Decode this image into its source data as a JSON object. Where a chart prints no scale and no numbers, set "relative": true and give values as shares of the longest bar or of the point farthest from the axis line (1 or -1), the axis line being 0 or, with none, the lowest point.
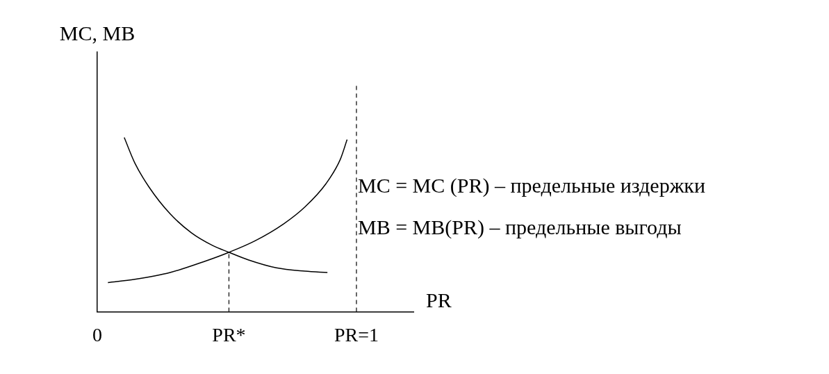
{
  "chart_data": {
    "type": "line",
    "relative": true,
    "xlabel": "PR",
    "ylabel": "MC, MB",
    "xlim": [
      0,
      1.22
    ],
    "xticks": [
      0,
      {
        "value": 0.508,
        "label": "PR*"
      },
      {
        "value": 1,
        "label": "PR=1"
      }
    ],
    "tick_labels": "x",
    "grid": false,
    "legend": false,
    "marker": "none",
    "line_style": "solid",
    "series": [
      {
        "color": "#000000",
        "x": [
          0.041,
          0.145,
          0.281,
          0.418,
          0.508,
          0.609,
          0.719,
          0.801,
          0.883,
          0.937,
          0.964
        ],
        "values": [
          0.167,
          0.186,
          0.225,
          0.291,
          0.341,
          0.407,
          0.504,
          0.601,
          0.736,
          0.872,
          0.988
        ]
      },
      {
        "color": "#000000",
        "x": [
          0.104,
          0.145,
          0.199,
          0.281,
          0.363,
          0.445,
          0.508,
          0.582,
          0.691,
          0.801,
          0.888
        ],
        "values": [
          1,
          0.853,
          0.717,
          0.562,
          0.453,
          0.38,
          0.341,
          0.298,
          0.252,
          0.233,
          0.225
        ]
      }
    ],
    "ref_lines": [
      {
        "axis": "x",
        "value": 0.508,
        "color": "#000000",
        "line_style": "dashed"
      },
      {
        "axis": "x",
        "value": 1,
        "color": "#000000",
        "line_style": "dashed"
      }
    ],
    "annotations": [
      "MC = MC (PR) – предельные издержки",
      "MB = MB(PR) – предельные выгоды"
    ]
  }
}
